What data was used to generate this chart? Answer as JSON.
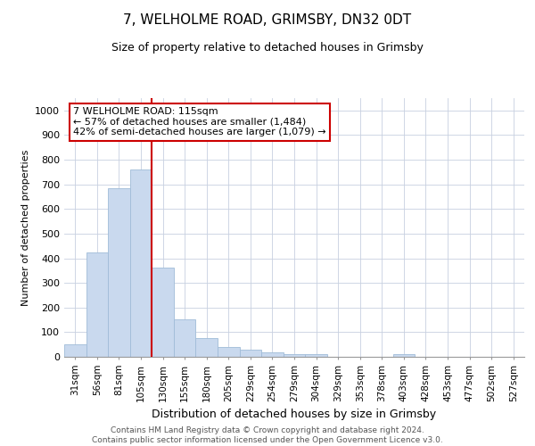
{
  "title": "7, WELHOLME ROAD, GRIMSBY, DN32 0DT",
  "subtitle": "Size of property relative to detached houses in Grimsby",
  "xlabel": "Distribution of detached houses by size in Grimsby",
  "ylabel": "Number of detached properties",
  "categories": [
    "31sqm",
    "56sqm",
    "81sqm",
    "105sqm",
    "130sqm",
    "155sqm",
    "180sqm",
    "205sqm",
    "229sqm",
    "254sqm",
    "279sqm",
    "304sqm",
    "329sqm",
    "353sqm",
    "378sqm",
    "403sqm",
    "428sqm",
    "453sqm",
    "477sqm",
    "502sqm",
    "527sqm"
  ],
  "values": [
    52,
    422,
    685,
    760,
    362,
    152,
    75,
    40,
    30,
    18,
    12,
    10,
    0,
    0,
    0,
    10,
    0,
    0,
    0,
    0,
    0
  ],
  "bar_color": "#c9d9ee",
  "bar_edge_color": "#a0bcd8",
  "vline_x": 3.5,
  "vline_color": "#cc0000",
  "annotation_text": "7 WELHOLME ROAD: 115sqm\n← 57% of detached houses are smaller (1,484)\n42% of semi-detached houses are larger (1,079) →",
  "annotation_box_color": "#ffffff",
  "annotation_box_edge": "#cc0000",
  "ylim": [
    0,
    1050
  ],
  "yticks": [
    0,
    100,
    200,
    300,
    400,
    500,
    600,
    700,
    800,
    900,
    1000
  ],
  "footer_line1": "Contains HM Land Registry data © Crown copyright and database right 2024.",
  "footer_line2": "Contains public sector information licensed under the Open Government Licence v3.0.",
  "background_color": "#ffffff",
  "grid_color": "#c8d0e0"
}
